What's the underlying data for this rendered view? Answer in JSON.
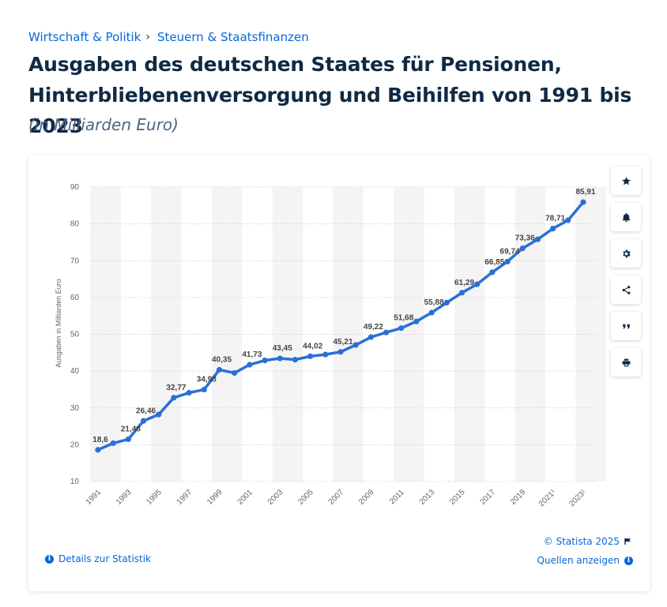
{
  "breadcrumb": {
    "items": [
      "Wirtschaft & Politik",
      "Steuern & Staatsfinanzen"
    ],
    "separator": "›"
  },
  "title": "Ausgaben des deutschen Staates für Pensionen, Hinterbliebenenversorgung und Beihilfen von 1991 bis 2023",
  "subtitle": "(in Milliarden Euro)",
  "toolbar": {
    "icons": [
      "star-icon",
      "bell-icon",
      "gear-icon",
      "share-icon",
      "quote-icon",
      "print-icon"
    ]
  },
  "footer": {
    "copyright": "© Statista 2025",
    "details_label": "Details zur Statistik",
    "sources_label": "Quellen anzeigen"
  },
  "colors": {
    "line": "#2a6fd6",
    "link": "#0666d9",
    "title": "#0f2a44",
    "band": "#f4f4f4"
  },
  "chart_data": {
    "type": "line",
    "ylabel": "Ausgaben in Milliarden Euro",
    "xlabel": "",
    "ylim": [
      10,
      90
    ],
    "yticks": [
      10,
      20,
      30,
      40,
      50,
      60,
      70,
      80,
      90
    ],
    "grid": "horizontal dotted",
    "x": [
      "1991",
      "1992",
      "1993",
      "1994",
      "1995",
      "1996",
      "1997",
      "1998",
      "1999",
      "2000",
      "2001",
      "2002",
      "2003",
      "2004",
      "2005",
      "2006",
      "2007",
      "2008",
      "2009",
      "2010",
      "2011",
      "2012",
      "2013",
      "2014",
      "2015",
      "2016",
      "2017",
      "2018",
      "2019",
      "2020",
      "2021",
      "2022",
      "2023"
    ],
    "xtick_labels": [
      "1991",
      "1993",
      "1995",
      "1997",
      "1999",
      "2001",
      "2003",
      "2005",
      "2007",
      "2009",
      "2011",
      "2013",
      "2015",
      "2017",
      "2019",
      "2021¹",
      "2023¹"
    ],
    "series": [
      {
        "values": [
          18.6,
          20.4,
          21.48,
          26.46,
          28.2,
          32.77,
          34.1,
          34.98,
          40.35,
          39.5,
          41.73,
          42.9,
          43.45,
          43.1,
          44.02,
          44.5,
          45.21,
          47.1,
          49.22,
          50.5,
          51.68,
          53.5,
          55.88,
          58.6,
          61.29,
          63.6,
          66.85,
          69.74,
          73.36,
          75.8,
          78.71,
          81.0,
          85.91
        ],
        "data_labels": {
          "1991": "18,6",
          "1993": "21,48",
          "1994": "26,46",
          "1996": "32,77",
          "1998": "34,98",
          "1999": "40,35",
          "2001": "41,73",
          "2003": "43,45",
          "2005": "44,02",
          "2007": "45,21",
          "2009": "49,22",
          "2011": "51,68",
          "2013": "55,88",
          "2015": "61,29",
          "2017": "66,85",
          "2018": "69,74",
          "2019": "73,36",
          "2021": "78,71",
          "2023": "85,91"
        }
      }
    ]
  }
}
